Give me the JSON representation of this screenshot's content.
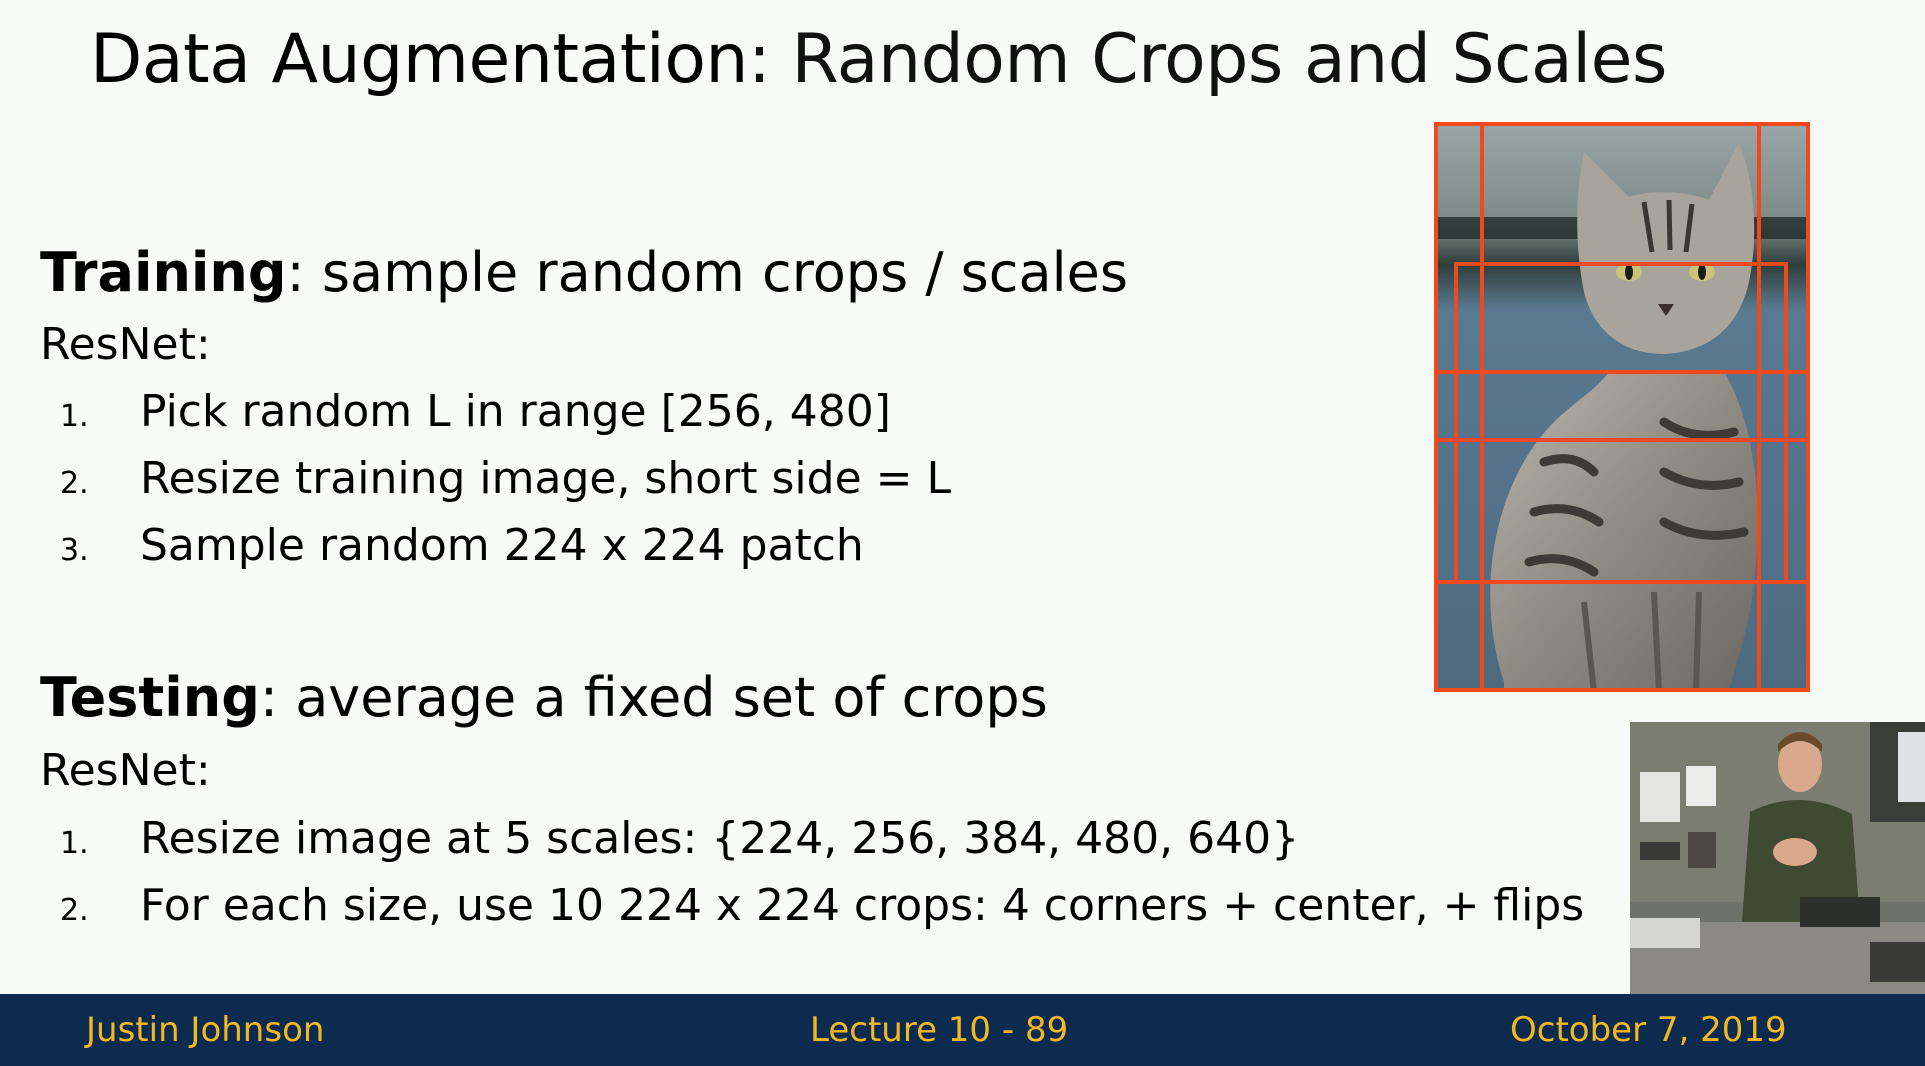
{
  "slide": {
    "title_bold": "Data Augmentation",
    "title_rest": ": Random Crops and Scales"
  },
  "training": {
    "heading_bold": "Training",
    "heading_rest": ": sample random crops / scales",
    "subheading": "ResNet:",
    "items": [
      {
        "num": "1.",
        "text": "Pick random L in range [256, 480]"
      },
      {
        "num": "2.",
        "text": "Resize training image, short side = L"
      },
      {
        "num": "3.",
        "text": "Sample random 224 x 224 patch"
      }
    ]
  },
  "testing": {
    "heading_bold": "Testing",
    "heading_rest": ": average a fixed set of crops",
    "subheading": "ResNet:",
    "items": [
      {
        "num": "1.",
        "text": "Resize image at 5 scales:  {224, 256, 384, 480, 640}"
      },
      {
        "num": "2.",
        "text": "For each size, use 10 224 x 224 crops: 4 corners + center, + flips"
      }
    ]
  },
  "footer": {
    "author": "Justin Johnson",
    "lecture": "Lecture 10 - 89",
    "date": "October 7, 2019"
  },
  "colors": {
    "footer_bg": "#0d2a4f",
    "footer_text": "#f2b824",
    "crop_box": "#f04a1c"
  }
}
